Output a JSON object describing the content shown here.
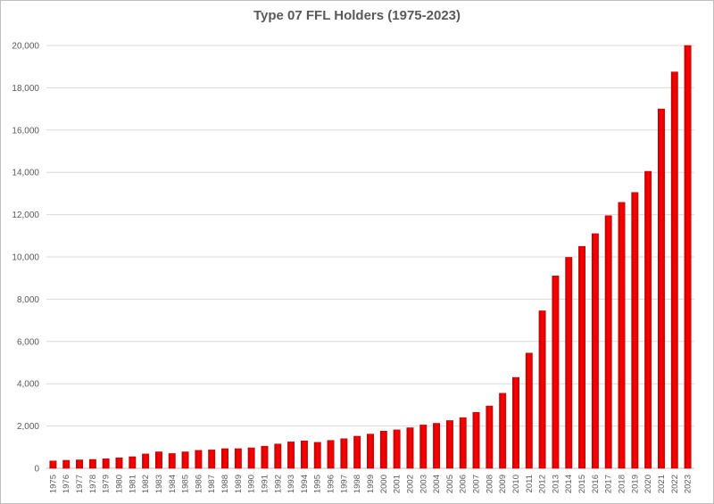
{
  "chart_data": {
    "type": "bar",
    "title": "Type 07 FFL Holders (1975-2023)",
    "xlabel": "",
    "ylabel": "",
    "ylim": [
      0,
      20000
    ],
    "yticks": [
      0,
      2000,
      4000,
      6000,
      8000,
      10000,
      12000,
      14000,
      16000,
      18000,
      20000
    ],
    "ytick_labels": [
      "0",
      "2,000",
      "4,000",
      "6,000",
      "8,000",
      "10,000",
      "12,000",
      "14,000",
      "16,000",
      "18,000",
      "20,000"
    ],
    "grid": "horizontal",
    "bar_color": "#ff0000",
    "categories": [
      "1975",
      "1976",
      "1977",
      "1978",
      "1979",
      "1980",
      "1981",
      "1982",
      "1983",
      "1984",
      "1985",
      "1986",
      "1987",
      "1988",
      "1989",
      "1990",
      "1991",
      "1992",
      "1993",
      "1994",
      "1995",
      "1996",
      "1997",
      "1998",
      "1999",
      "2000",
      "2001",
      "2002",
      "2003",
      "2004",
      "2005",
      "2006",
      "2007",
      "2008",
      "2009",
      "2010",
      "2011",
      "2012",
      "2013",
      "2014",
      "2015",
      "2016",
      "2017",
      "2018",
      "2019",
      "2020",
      "2021",
      "2022",
      "2023"
    ],
    "values": [
      350,
      380,
      400,
      420,
      450,
      500,
      550,
      680,
      780,
      700,
      780,
      850,
      870,
      930,
      930,
      970,
      1050,
      1150,
      1250,
      1300,
      1230,
      1320,
      1400,
      1520,
      1620,
      1760,
      1820,
      1920,
      2050,
      2130,
      2260,
      2400,
      2650,
      2950,
      3550,
      4300,
      5450,
      7450,
      9100,
      9980,
      10500,
      11100,
      11950,
      12580,
      13050,
      14050,
      17000,
      18750,
      20000
    ]
  }
}
